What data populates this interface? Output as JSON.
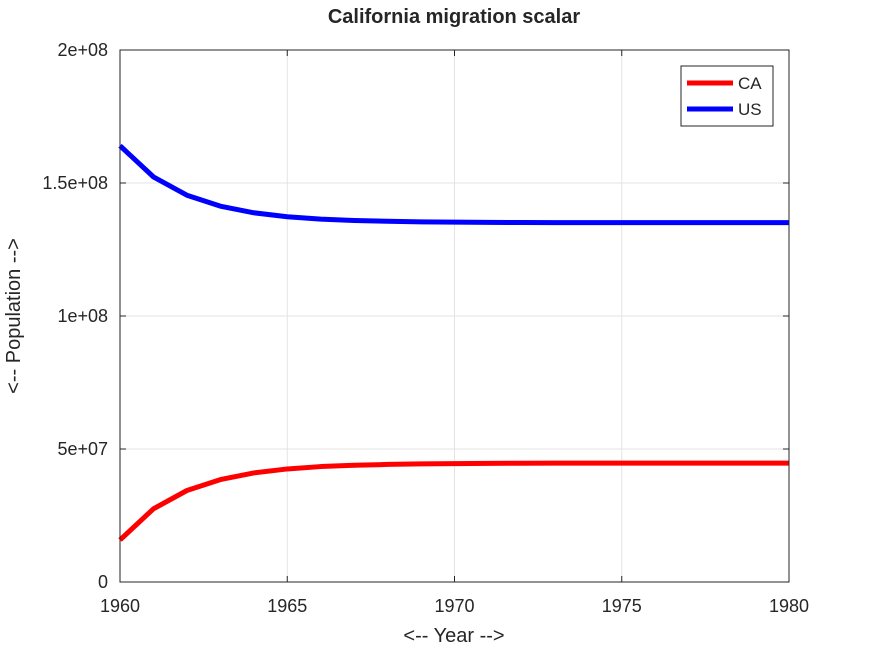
{
  "chart_data": {
    "type": "line",
    "title": "California migration scalar",
    "xlabel": "<-- Year -->",
    "ylabel": "<-- Population -->",
    "xlim": [
      1960,
      1980
    ],
    "ylim": [
      0,
      200000000
    ],
    "x_ticks": [
      1960,
      1965,
      1970,
      1975,
      1980
    ],
    "x_tick_labels": [
      "1960",
      "1965",
      "1970",
      "1975",
      "1980"
    ],
    "y_ticks": [
      0,
      50000000,
      100000000,
      150000000,
      200000000
    ],
    "y_tick_labels": [
      "0",
      "5e+07",
      "1e+08",
      "1.5e+08",
      "2e+08"
    ],
    "grid": true,
    "legend_position": "top-right",
    "x": [
      1960,
      1961,
      1962,
      1963,
      1964,
      1965,
      1966,
      1967,
      1968,
      1969,
      1970,
      1971,
      1972,
      1973,
      1974,
      1975,
      1976,
      1977,
      1978,
      1979,
      1980
    ],
    "series": [
      {
        "name": "CA",
        "color": "#ff0000",
        "values": [
          15800000,
          27500000,
          34400000,
          38500000,
          41000000,
          42500000,
          43400000,
          43900000,
          44200000,
          44400000,
          44500000,
          44600000,
          44650000,
          44700000,
          44700000,
          44700000,
          44700000,
          44700000,
          44700000,
          44700000,
          44700000
        ]
      },
      {
        "name": "US",
        "color": "#0000ff",
        "values": [
          164000000,
          152300000,
          145400000,
          141300000,
          138800000,
          137300000,
          136400000,
          135900000,
          135600000,
          135400000,
          135300000,
          135200000,
          135150000,
          135100000,
          135100000,
          135100000,
          135100000,
          135100000,
          135100000,
          135100000,
          135100000
        ]
      }
    ]
  }
}
